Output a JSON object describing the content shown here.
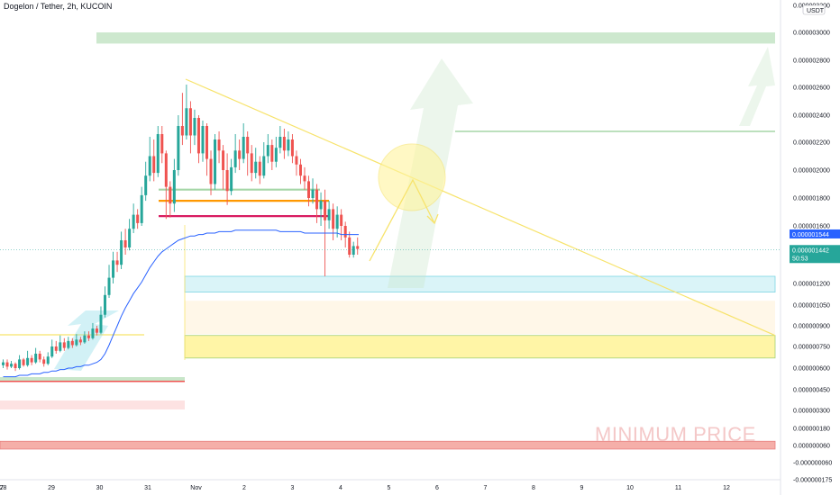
{
  "title": "Dogelon / Tether, 2h, KUCOIN",
  "colors": {
    "up": "#26a69a",
    "down": "#ef5350",
    "ma": "#2962ff",
    "trend": "#f7e36b",
    "accent": "#2962ff"
  },
  "currency_badge": "USDT",
  "watermark": "MINIMUM PRICE",
  "price_tags": {
    "ma": {
      "label": "0.000001544",
      "value": 1.544e-06
    },
    "last": {
      "label": "0.000001442",
      "value": 1.442e-06,
      "countdown": "50:53"
    }
  },
  "chart_data": {
    "type": "candlestick",
    "title": "Dogelon / Tether, 2h, KUCOIN",
    "y_ticks": [
      "0.000003200",
      "0.000003000",
      "0.000002800",
      "0.000002600",
      "0.000002400",
      "0.000002200",
      "0.000002000",
      "0.000001800",
      "0.000001600",
      "0.000001200",
      "0.000001050",
      "0.000000900",
      "0.000000750",
      "0.000000600",
      "0.000000450",
      "0.000000300",
      "0.000000180",
      "0.000000060",
      "-0.000000060",
      "-0.000000175"
    ],
    "x_ticks": [
      "7",
      "28",
      "29",
      "30",
      "31",
      "Nov",
      "2",
      "3",
      "4",
      "5",
      "6",
      "7",
      "8",
      "9",
      "10",
      "11",
      "12"
    ],
    "x_tick_days": [
      -6,
      -5,
      -4,
      -3,
      -2,
      -1,
      0,
      1,
      2,
      3,
      4,
      5,
      6,
      7,
      8,
      9,
      10
    ],
    "zones": [
      {
        "name": "target-zone",
        "from": 2.92e-06,
        "to": 3e-06,
        "color": "#c8e6c9"
      },
      {
        "name": "support-zone-blue",
        "from": 1.14e-06,
        "to": 1.25e-06,
        "color": "#d6f3f8"
      },
      {
        "name": "support-zone-light",
        "from": 8.4e-07,
        "to": 1.08e-06,
        "color": "#fff6e6"
      },
      {
        "name": "support-zone-yellow",
        "from": 6.7e-07,
        "to": 8.3e-07,
        "color": "#fff59d"
      },
      {
        "name": "minimum-price-zone",
        "from": 3.5e-08,
        "to": 9e-08,
        "color": "#f4a7a0"
      }
    ],
    "levels": [
      {
        "name": "green-level",
        "value": 1.86e-06,
        "color": "#a5d6a7"
      },
      {
        "name": "orange-level",
        "value": 1.78e-06,
        "color": "#ff9800"
      },
      {
        "name": "magenta-level",
        "value": 1.67e-06,
        "color": "#d81b60"
      },
      {
        "name": "target-level",
        "value": 2.28e-06,
        "color": "#a5d6a7"
      }
    ],
    "candles": [
      [
        6.2e-07,
        6.4e-07,
        6.6e-07,
        6e-07
      ],
      [
        6.4e-07,
        6.1e-07,
        6.6e-07,
        5.9e-07
      ],
      [
        6.1e-07,
        6.3e-07,
        6.5e-07,
        6e-07
      ],
      [
        6.3e-07,
        6e-07,
        6.4e-07,
        5.8e-07
      ],
      [
        6e-07,
        6.6e-07,
        6.9e-07,
        5.9e-07
      ],
      [
        6.6e-07,
        6.2e-07,
        6.7e-07,
        6.1e-07
      ],
      [
        6.2e-07,
        6.7e-07,
        7.2e-07,
        6.1e-07
      ],
      [
        6.7e-07,
        6.4e-07,
        6.9e-07,
        6.2e-07
      ],
      [
        6.4e-07,
        7e-07,
        7.4e-07,
        6.3e-07
      ],
      [
        7e-07,
        6.6e-07,
        7.2e-07,
        6.4e-07
      ],
      [
        6.6e-07,
        6.3e-07,
        6.8e-07,
        6.1e-07
      ],
      [
        6.3e-07,
        6.8e-07,
        7.1e-07,
        6.2e-07
      ],
      [
        6.8e-07,
        7.5e-07,
        8e-07,
        6.7e-07
      ],
      [
        7.5e-07,
        7.2e-07,
        7.9e-07,
        7e-07
      ],
      [
        7.2e-07,
        7.8e-07,
        8.3e-07,
        7.1e-07
      ],
      [
        7.8e-07,
        7.4e-07,
        8.1e-07,
        7.2e-07
      ],
      [
        7.4e-07,
        7.9e-07,
        8.2e-07,
        7.3e-07
      ],
      [
        7.9e-07,
        7.6e-07,
        8.1e-07,
        7.4e-07
      ],
      [
        7.6e-07,
        8e-07,
        8.4e-07,
        7.5e-07
      ],
      [
        8e-07,
        7.8e-07,
        8.2e-07,
        7.6e-07
      ],
      [
        7.8e-07,
        8.3e-07,
        8.6e-07,
        7.7e-07
      ],
      [
        8.3e-07,
        8.1e-07,
        8.6e-07,
        7.9e-07
      ],
      [
        8.1e-07,
        8.8e-07,
        9.2e-07,
        8e-07
      ],
      [
        8.8e-07,
        8.5e-07,
        9e-07,
        8.3e-07
      ],
      [
        8.5e-07,
        9.8e-07,
        1.04e-06,
        8.4e-07
      ],
      [
        9.8e-07,
        1.12e-06,
        1.18e-06,
        9.6e-07
      ],
      [
        1.12e-06,
        1.24e-06,
        1.33e-06,
        1.1e-06
      ],
      [
        1.24e-06,
        1.36e-06,
        1.42e-06,
        1.2e-06
      ],
      [
        1.36e-06,
        1.33e-06,
        1.42e-06,
        1.28e-06
      ],
      [
        1.33e-06,
        1.5e-06,
        1.56e-06,
        1.3e-06
      ],
      [
        1.5e-06,
        1.45e-06,
        1.58e-06,
        1.4e-06
      ],
      [
        1.45e-06,
        1.58e-06,
        1.65e-06,
        1.43e-06
      ],
      [
        1.58e-06,
        1.68e-06,
        1.76e-06,
        1.55e-06
      ],
      [
        1.68e-06,
        1.62e-06,
        1.72e-06,
        1.58e-06
      ],
      [
        1.62e-06,
        1.82e-06,
        1.88e-06,
        1.6e-06
      ],
      [
        1.82e-06,
        1.96e-06,
        2.06e-06,
        1.78e-06
      ],
      [
        1.96e-06,
        2.1e-06,
        2.24e-06,
        1.92e-06
      ],
      [
        2.1e-06,
        1.98e-06,
        2.22e-06,
        1.92e-06
      ],
      [
        1.98e-06,
        2.26e-06,
        2.32e-06,
        1.95e-06
      ],
      [
        2.26e-06,
        2.12e-06,
        2.32e-06,
        2.05e-06
      ],
      [
        2.12e-06,
        1.88e-06,
        2.14e-06,
        1.65e-06
      ],
      [
        1.88e-06,
        1.76e-06,
        1.92e-06,
        1.66e-06
      ],
      [
        1.76e-06,
        2e-06,
        2.08e-06,
        1.7e-06
      ],
      [
        2e-06,
        2.32e-06,
        2.4e-06,
        1.96e-06
      ],
      [
        2.32e-06,
        2.25e-06,
        2.56e-06,
        2.18e-06
      ],
      [
        2.25e-06,
        2.45e-06,
        2.62e-06,
        2.22e-06
      ],
      [
        2.45e-06,
        2.25e-06,
        2.5e-06,
        2.12e-06
      ],
      [
        2.25e-06,
        2.38e-06,
        2.44e-06,
        2.18e-06
      ],
      [
        2.38e-06,
        2.12e-06,
        2.4e-06,
        2.05e-06
      ],
      [
        2.12e-06,
        2.32e-06,
        2.36e-06,
        2.06e-06
      ],
      [
        2.32e-06,
        2.08e-06,
        2.34e-06,
        1.96e-06
      ],
      [
        2.08e-06,
        1.9e-06,
        2.14e-06,
        1.82e-06
      ],
      [
        1.9e-06,
        2.22e-06,
        2.26e-06,
        1.86e-06
      ],
      [
        2.22e-06,
        2.14e-06,
        2.28e-06,
        2.05e-06
      ],
      [
        2.14e-06,
        2e-06,
        2.18e-06,
        1.86e-06
      ],
      [
        2e-06,
        1.85e-06,
        2.12e-06,
        1.75e-06
      ],
      [
        1.85e-06,
        2.02e-06,
        2.08e-06,
        1.82e-06
      ],
      [
        2.02e-06,
        2.14e-06,
        2.26e-06,
        1.98e-06
      ],
      [
        2.14e-06,
        2.08e-06,
        2.22e-06,
        2e-06
      ],
      [
        2.08e-06,
        2.24e-06,
        2.34e-06,
        2.05e-06
      ],
      [
        2.24e-06,
        2.12e-06,
        2.28e-06,
        1.96e-06
      ],
      [
        2.12e-06,
        1.98e-06,
        2.18e-06,
        1.92e-06
      ],
      [
        1.98e-06,
        2.06e-06,
        2.16e-06,
        1.94e-06
      ],
      [
        2.06e-06,
        1.96e-06,
        2.1e-06,
        1.9e-06
      ],
      [
        1.96e-06,
        2.1e-06,
        2.2e-06,
        1.94e-06
      ],
      [
        2.1e-06,
        2.18e-06,
        2.26e-06,
        2.05e-06
      ],
      [
        2.18e-06,
        2.06e-06,
        2.22e-06,
        2e-06
      ],
      [
        2.06e-06,
        2.16e-06,
        2.24e-06,
        2.02e-06
      ],
      [
        2.16e-06,
        2.24e-06,
        2.32e-06,
        2.12e-06
      ],
      [
        2.24e-06,
        2.14e-06,
        2.3e-06,
        2.08e-06
      ],
      [
        2.14e-06,
        2.22e-06,
        2.28e-06,
        2.1e-06
      ],
      [
        2.22e-06,
        2.1e-06,
        2.26e-06,
        2.05e-06
      ],
      [
        2.1e-06,
        2.04e-06,
        2.14e-06,
        1.96e-06
      ],
      [
        2.04e-06,
        1.96e-06,
        2.08e-06,
        1.9e-06
      ],
      [
        1.96e-06,
        1.92e-06,
        2.02e-06,
        1.86e-06
      ],
      [
        1.92e-06,
        1.8e-06,
        1.96e-06,
        1.74e-06
      ],
      [
        1.8e-06,
        1.86e-06,
        1.94e-06,
        1.76e-06
      ],
      [
        1.86e-06,
        1.72e-06,
        1.9e-06,
        1.62e-06
      ],
      [
        1.72e-06,
        1.78e-06,
        1.84e-06,
        1.6e-06
      ],
      [
        1.78e-06,
        1.64e-06,
        1.86e-06,
        1.25e-06
      ],
      [
        1.64e-06,
        1.72e-06,
        1.78e-06,
        1.58e-06
      ],
      [
        1.72e-06,
        1.58e-06,
        1.76e-06,
        1.5e-06
      ],
      [
        1.58e-06,
        1.68e-06,
        1.74e-06,
        1.52e-06
      ],
      [
        1.68e-06,
        1.6e-06,
        1.72e-06,
        1.5e-06
      ],
      [
        1.6e-06,
        1.52e-06,
        1.63e-06,
        1.45e-06
      ],
      [
        1.52e-06,
        1.4e-06,
        1.56e-06,
        1.38e-06
      ],
      [
        1.4e-06,
        1.46e-06,
        1.49e-06,
        1.38e-06
      ],
      [
        1.46e-06,
        1.44e-06,
        1.52e-06,
        1.4e-06
      ]
    ],
    "ma": [
      5.4e-07,
      5.4e-07,
      5.4e-07,
      5.4e-07,
      5.5e-07,
      5.5e-07,
      5.5e-07,
      5.6e-07,
      5.6e-07,
      5.6e-07,
      5.7e-07,
      5.7e-07,
      5.8e-07,
      5.8e-07,
      5.9e-07,
      5.9e-07,
      6e-07,
      6e-07,
      6.1e-07,
      6.1e-07,
      6.2e-07,
      6.2e-07,
      6.3e-07,
      6.4e-07,
      6.6e-07,
      7e-07,
      7.6e-07,
      8.3e-07,
      9e-07,
      9.7e-07,
      1.03e-06,
      1.08e-06,
      1.13e-06,
      1.17e-06,
      1.21e-06,
      1.26e-06,
      1.31e-06,
      1.35e-06,
      1.39e-06,
      1.42e-06,
      1.44e-06,
      1.46e-06,
      1.48e-06,
      1.5e-06,
      1.51e-06,
      1.52e-06,
      1.53e-06,
      1.53e-06,
      1.54e-06,
      1.54e-06,
      1.55e-06,
      1.55e-06,
      1.55e-06,
      1.56e-06,
      1.56e-06,
      1.56e-06,
      1.56e-06,
      1.57e-06,
      1.57e-06,
      1.57e-06,
      1.57e-06,
      1.57e-06,
      1.57e-06,
      1.57e-06,
      1.57e-06,
      1.57e-06,
      1.57e-06,
      1.57e-06,
      1.56e-06,
      1.56e-06,
      1.56e-06,
      1.56e-06,
      1.56e-06,
      1.56e-06,
      1.55e-06,
      1.55e-06,
      1.55e-06,
      1.55e-06,
      1.55e-06,
      1.55e-06,
      1.55e-06,
      1.55e-06,
      1.55e-06,
      1.54e-06,
      1.54e-06,
      1.54e-06,
      1.54e-06,
      1.54e-06
    ],
    "trendline": [
      [
        2.66e-06,
        8.3e-07
      ]
    ]
  }
}
